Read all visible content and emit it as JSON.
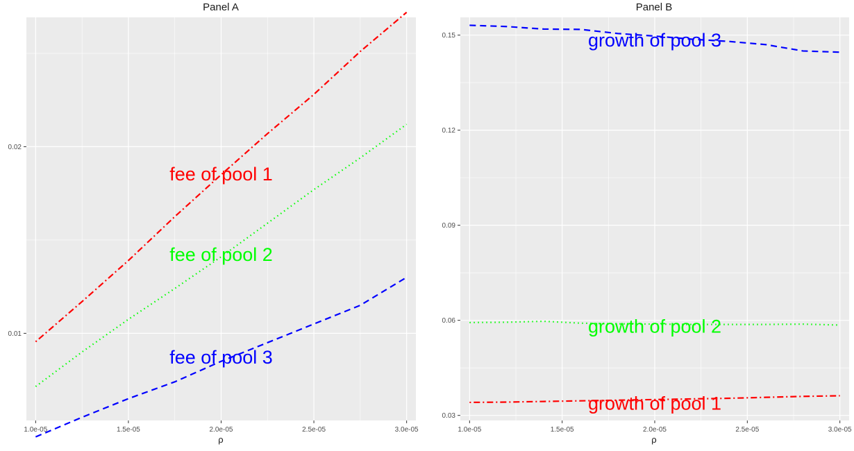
{
  "chart_data": [
    {
      "type": "line",
      "title": "Panel A",
      "xlabel": "ρ",
      "ylabel": "",
      "xlim": [
        9.5e-06,
        3.05e-05
      ],
      "ylim": [
        0.00533,
        0.02693
      ],
      "x_ticks": [
        1e-05,
        1.5e-05,
        2e-05,
        2.5e-05,
        3e-05
      ],
      "x_tick_labels": [
        "1.0e-05",
        "1.5e-05",
        "2.0e-05",
        "2.5e-05",
        "3.0e-05"
      ],
      "y_ticks": [
        0.01,
        0.02
      ],
      "y_tick_labels": [
        "0.01",
        "0.02"
      ],
      "grid": true,
      "background": "#ebebeb",
      "x": [
        1e-05,
        1.25e-05,
        1.5e-05,
        1.75e-05,
        2e-05,
        2.25e-05,
        2.5e-05,
        2.75e-05,
        3e-05
      ],
      "series": [
        {
          "color": "#ff0000",
          "dash": "dotdash",
          "values": [
            0.00955,
            0.0117,
            0.0139,
            0.01625,
            0.0185,
            0.0207,
            0.0228,
            0.0251,
            0.0272
          ]
        },
        {
          "color": "#00ff00",
          "dash": "dotted",
          "values": [
            0.00715,
            0.009,
            0.01075,
            0.0124,
            0.0141,
            0.0159,
            0.0177,
            0.0194,
            0.0212
          ]
        },
        {
          "color": "#0000ff",
          "dash": "dashed",
          "values": [
            0.00445,
            0.0055,
            0.0065,
            0.0074,
            0.0085,
            0.0095,
            0.0105,
            0.0115,
            0.013
          ]
        }
      ],
      "annotations": [
        {
          "text": "fee of pool 1",
          "x": 2e-05,
          "y": 0.01845,
          "color": "#ff0000"
        },
        {
          "text": "fee of pool 2",
          "x": 2e-05,
          "y": 0.01415,
          "color": "#00ff00"
        },
        {
          "text": "fee of pool 3",
          "x": 2e-05,
          "y": 0.00865,
          "color": "#0000ff"
        }
      ]
    },
    {
      "type": "line",
      "title": "Panel B",
      "xlabel": "ρ",
      "ylabel": "",
      "xlim": [
        9.5e-06,
        3.05e-05
      ],
      "ylim": [
        0.0284,
        0.1556
      ],
      "x_ticks": [
        1e-05,
        1.5e-05,
        2e-05,
        2.5e-05,
        3e-05
      ],
      "x_tick_labels": [
        "1.0e-05",
        "1.5e-05",
        "2.0e-05",
        "2.5e-05",
        "3.0e-05"
      ],
      "y_ticks": [
        0.03,
        0.06,
        0.09,
        0.12,
        0.15
      ],
      "y_tick_labels": [
        "0.03",
        "0.06",
        "0.09",
        "0.12",
        "0.15"
      ],
      "grid": true,
      "background": "#ebebeb",
      "x": [
        1e-05,
        1.2e-05,
        1.4e-05,
        1.6e-05,
        1.8e-05,
        2e-05,
        2.2e-05,
        2.4e-05,
        2.6e-05,
        2.8e-05,
        3e-05
      ],
      "series": [
        {
          "color": "#ff0000",
          "dash": "dotdash",
          "values": [
            0.0341,
            0.0342,
            0.0344,
            0.0346,
            0.0348,
            0.035,
            0.0352,
            0.0354,
            0.0357,
            0.036,
            0.0362
          ]
        },
        {
          "color": "#00ff00",
          "dash": "dotted",
          "values": [
            0.0593,
            0.0594,
            0.0597,
            0.0591,
            0.0589,
            0.0588,
            0.0587,
            0.0587,
            0.0587,
            0.0588,
            0.0585
          ]
        },
        {
          "color": "#0000ff",
          "dash": "dashed",
          "values": [
            0.1531,
            0.1527,
            0.1519,
            0.1518,
            0.1505,
            0.1497,
            0.1487,
            0.148,
            0.147,
            0.145,
            0.1446
          ]
        }
      ],
      "annotations": [
        {
          "text": "growth of pool 1",
          "x": 2e-05,
          "y": 0.0334,
          "color": "#ff0000"
        },
        {
          "text": "growth of pool 2",
          "x": 2e-05,
          "y": 0.0577,
          "color": "#00ff00"
        },
        {
          "text": "growth of pool 3",
          "x": 2e-05,
          "y": 0.148,
          "color": "#0000ff"
        }
      ]
    }
  ]
}
